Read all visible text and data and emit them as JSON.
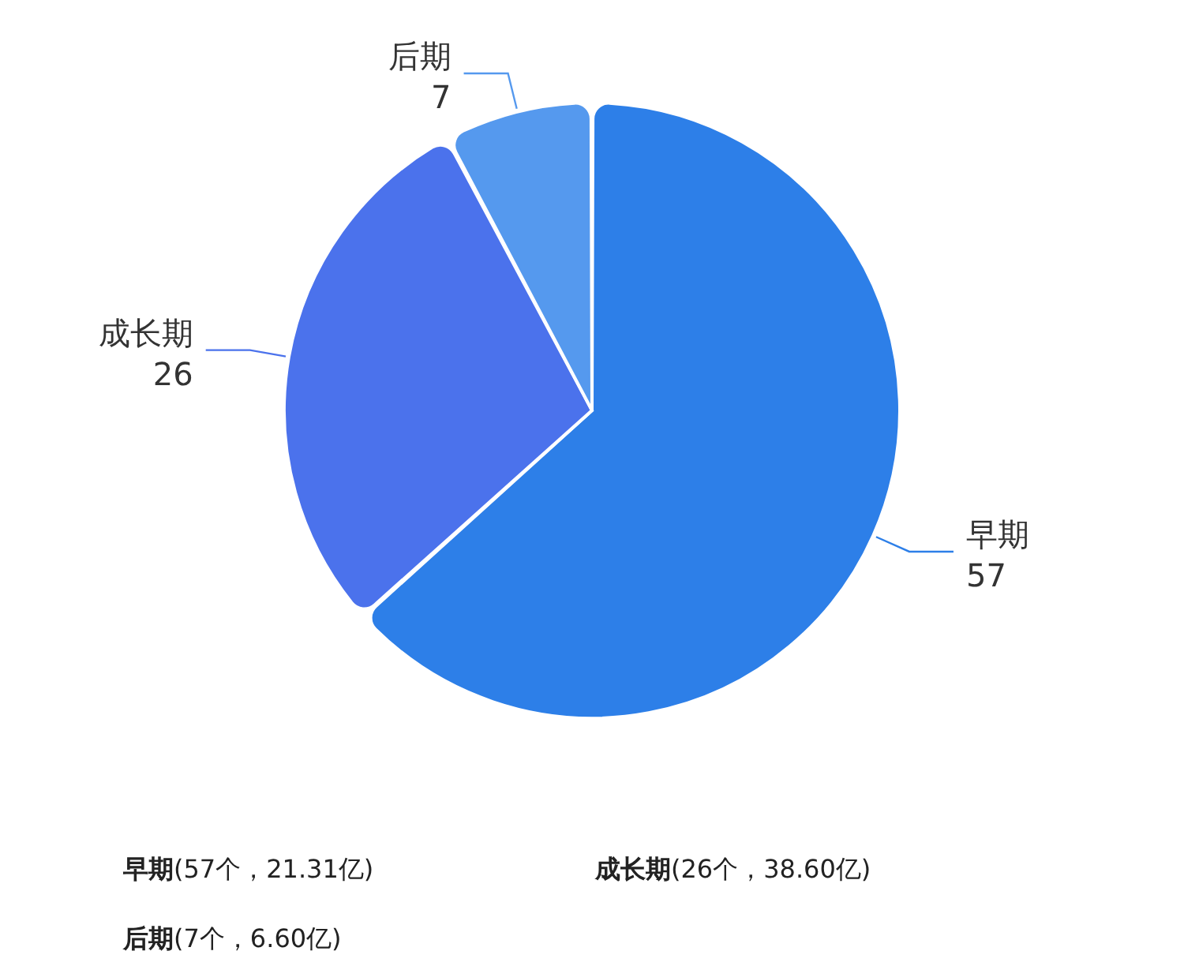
{
  "chart_data": {
    "type": "pie",
    "categories": [
      "早期",
      "成长期",
      "后期"
    ],
    "values": [
      57,
      26,
      7
    ],
    "colors": [
      "#2d7fe8",
      "#4b72ec",
      "#5599ee"
    ],
    "data_labels": true,
    "annotations": [
      "(57个，21.31亿)",
      "(26个，38.60亿)",
      "(7个，6.60亿)"
    ]
  }
}
